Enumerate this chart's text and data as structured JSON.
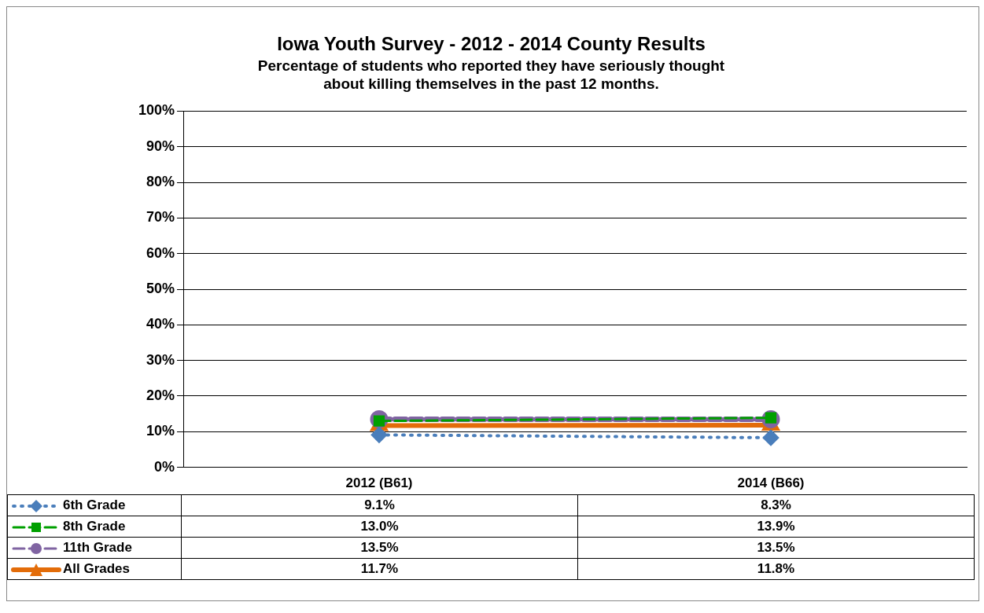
{
  "chart_data": {
    "type": "line",
    "title": "Iowa Youth Survey - 2012 - 2014 County Results",
    "subtitle": [
      "Percentage of students who reported they have seriously thought",
      "about killing themselves in the past 12 months."
    ],
    "categories": [
      "2012 (B61)",
      "2014 (B66)"
    ],
    "series": [
      {
        "name": "6th Grade",
        "color": "#4a7ebb",
        "values": [
          9.1,
          8.3
        ],
        "value_labels": [
          "9.1%",
          "8.3%"
        ],
        "marker": "diamond",
        "line_style": "dotted"
      },
      {
        "name": "8th Grade",
        "color": "#00a000",
        "values": [
          13.0,
          13.9
        ],
        "value_labels": [
          "13.0%",
          "13.9%"
        ],
        "marker": "square",
        "line_style": "dashed"
      },
      {
        "name": "11th Grade",
        "color": "#8064a2",
        "values": [
          13.5,
          13.5
        ],
        "value_labels": [
          "13.5%",
          "13.5%"
        ],
        "marker": "circle",
        "line_style": "dashed"
      },
      {
        "name": "All Grades",
        "color": "#e36c09",
        "values": [
          11.7,
          11.8
        ],
        "value_labels": [
          "11.7%",
          "11.8%"
        ],
        "marker": "triangle",
        "line_style": "solid"
      }
    ],
    "ylim": [
      0,
      100
    ],
    "yticks": [
      {
        "value": 0,
        "label": "0%"
      },
      {
        "value": 10,
        "label": "10%"
      },
      {
        "value": 20,
        "label": "20%"
      },
      {
        "value": 30,
        "label": "30%"
      },
      {
        "value": 40,
        "label": "40%"
      },
      {
        "value": 50,
        "label": "50%"
      },
      {
        "value": 60,
        "label": "60%"
      },
      {
        "value": 70,
        "label": "70%"
      },
      {
        "value": 80,
        "label": "80%"
      },
      {
        "value": 90,
        "label": "90%"
      },
      {
        "value": 100,
        "label": "100%"
      }
    ],
    "grid": "y",
    "legend": "bottom"
  }
}
